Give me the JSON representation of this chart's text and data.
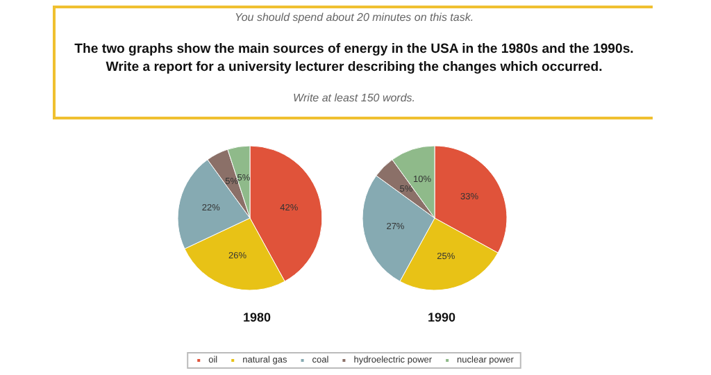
{
  "chart_data": [
    {
      "type": "other",
      "subtitle": "You should spend about 20 minutes on this task.",
      "title": "The two graphs show the main sources of energy in the USA in the 1980s and the 1990s.\nWrite a report for a university lecturer describing the changes which occurred.",
      "annotations": [
        "Write at least 150 words."
      ]
    },
    {
      "type": "pie",
      "categories": [
        "oil",
        "natural gas",
        "coal",
        "hydroelectric power",
        "nuclear power"
      ],
      "colors": [
        "#e0533a",
        "#e8c216",
        "#86aab2",
        "#8b7068",
        "#8fba8a"
      ],
      "legend": "bottom",
      "series": [
        {
          "name": "1980",
          "values": [
            42,
            26,
            22,
            5,
            5
          ],
          "value_labels": [
            "42%",
            "26%",
            "22%",
            "5%",
            "5%"
          ]
        },
        {
          "name": "1990",
          "values": [
            33,
            25,
            27,
            5,
            10
          ],
          "value_labels": [
            "33%",
            "25%",
            "27%",
            "5%",
            "10%"
          ]
        }
      ]
    }
  ]
}
